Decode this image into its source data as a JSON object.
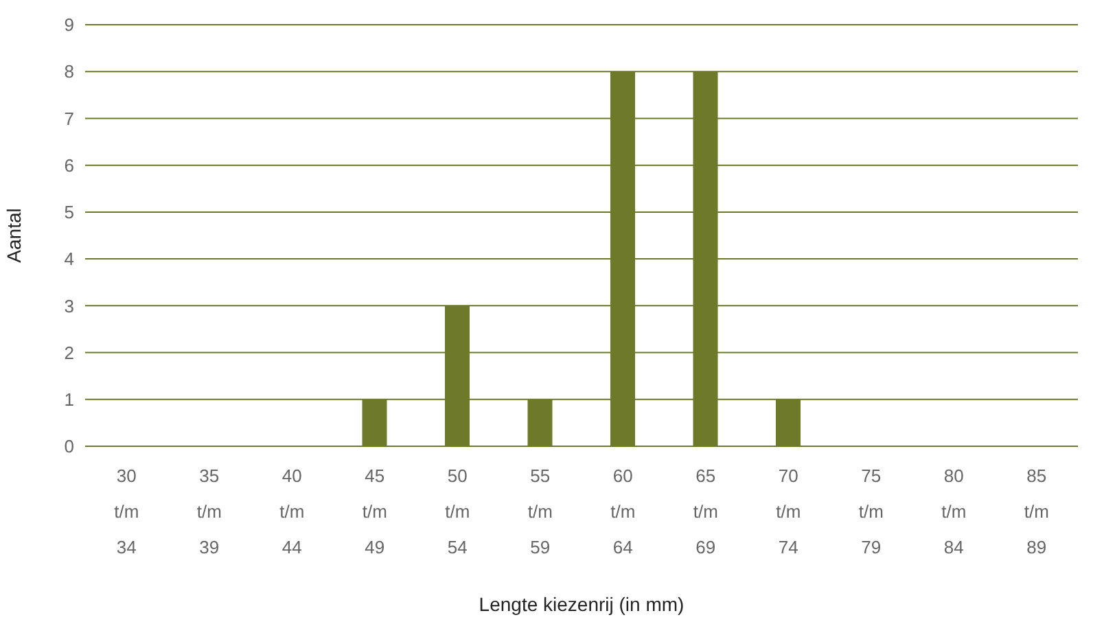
{
  "chart_data": {
    "type": "bar",
    "xlabel": "Lengte kiezenrij (in mm)",
    "ylabel": "Aantal",
    "categories": [
      "30 t/m 34",
      "35 t/m 39",
      "40 t/m 44",
      "45 t/m 49",
      "50 t/m 54",
      "55 t/m 59",
      "60 t/m 64",
      "65 t/m 69",
      "70 t/m 74",
      "75 t/m 79",
      "80 t/m 84",
      "85 t/m 89"
    ],
    "values": [
      0,
      0,
      0,
      1,
      3,
      1,
      8,
      8,
      1,
      0,
      0,
      0
    ],
    "color": "#6e7a2a",
    "ylim": [
      0,
      9
    ],
    "yticks": [
      0,
      1,
      2,
      3,
      4,
      5,
      6,
      7,
      8,
      9
    ],
    "grid": "y",
    "legend": false
  }
}
